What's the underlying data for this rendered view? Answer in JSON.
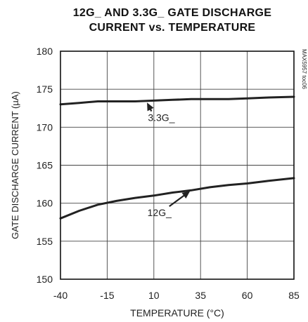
{
  "chart_data": {
    "type": "line",
    "title_lines": [
      "12G_ AND 3.3G_ GATE DISCHARGE",
      "CURRENT vs. TEMPERATURE"
    ],
    "xlabel": "TEMPERATURE (°C)",
    "ylabel": "GATE DISCHARGE CURRENT (µA)",
    "watermark": "MAX5957 toc06",
    "xlim": [
      -40,
      85
    ],
    "ylim": [
      150,
      180
    ],
    "x_ticks": [
      -40,
      -15,
      10,
      35,
      60,
      85
    ],
    "x_tick_labels": [
      "-40",
      "-15",
      "10",
      "35",
      "60",
      "85"
    ],
    "y_ticks": [
      150,
      155,
      160,
      165,
      170,
      175,
      180
    ],
    "y_tick_labels": [
      "150",
      "155",
      "160",
      "165",
      "170",
      "175",
      "180"
    ],
    "grid": true,
    "series": [
      {
        "name": "3.3G_",
        "x": [
          -40,
          -30,
          -20,
          -10,
          0,
          10,
          20,
          30,
          40,
          50,
          60,
          70,
          85
        ],
        "values": [
          173.0,
          173.2,
          173.4,
          173.4,
          173.4,
          173.5,
          173.6,
          173.7,
          173.7,
          173.7,
          173.8,
          173.9,
          174.0
        ]
      },
      {
        "name": "12G_",
        "x": [
          -40,
          -30,
          -20,
          -10,
          0,
          10,
          20,
          30,
          40,
          50,
          60,
          70,
          85
        ],
        "values": [
          158.0,
          159.0,
          159.8,
          160.3,
          160.7,
          161.0,
          161.4,
          161.7,
          162.1,
          162.4,
          162.6,
          162.9,
          163.3
        ]
      }
    ],
    "annotations": [
      {
        "series": "3.3G_",
        "text": "3.3G_",
        "point": [
          6,
          173.4
        ],
        "label_at": [
          14,
          170.8
        ]
      },
      {
        "series": "12G_",
        "text": "12G_",
        "point": [
          30,
          161.7
        ],
        "label_at": [
          13,
          158.3
        ]
      }
    ],
    "colors": {
      "line": "#222222",
      "grid": "#444444",
      "axis": "#111111"
    }
  }
}
